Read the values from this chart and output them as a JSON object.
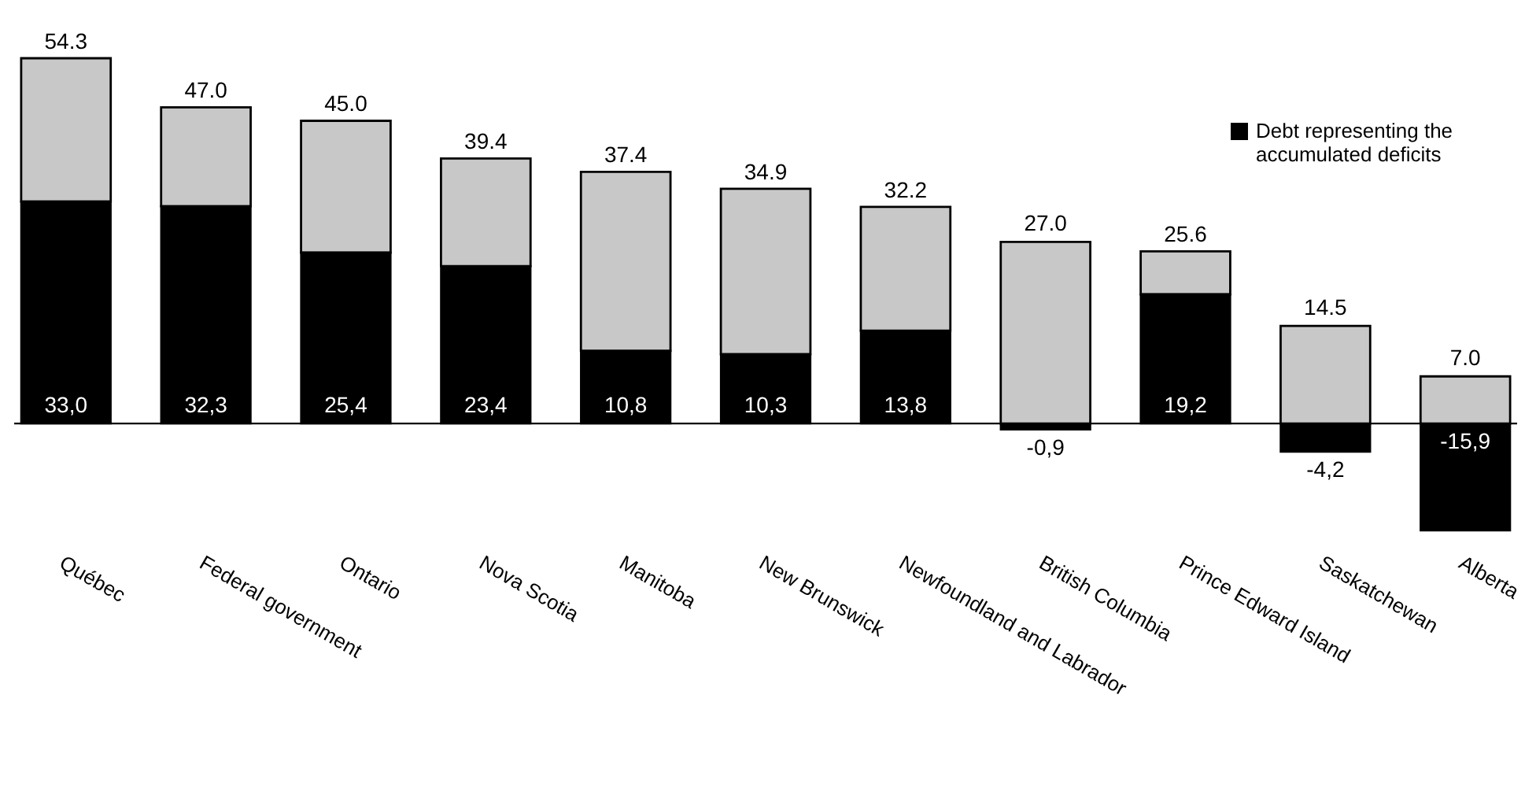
{
  "chart_data": {
    "type": "bar",
    "stacked": true,
    "legend": "top right",
    "tick_labels": "x",
    "categories": [
      "Québec",
      "Federal government",
      "Ontario",
      "Nova Scotia",
      "Manitoba",
      "New Brunswick",
      "Newfoundland and Labrador",
      "British Columbia",
      "Prince Edward Island",
      "Saskatchewan",
      "Alberta"
    ],
    "series": [
      {
        "name": "Debt representing the accumulated deficits",
        "color": "#000000",
        "values": [
          33.0,
          32.3,
          25.4,
          23.4,
          10.8,
          10.3,
          13.8,
          -0.9,
          19.2,
          -4.2,
          -15.9
        ],
        "value_labels": [
          "33,0",
          "32,3",
          "25,4",
          "23,4",
          "10,8",
          "10,3",
          "13,8",
          "-0,9",
          "19,2",
          "-4,2",
          "-15,9"
        ]
      },
      {
        "color": "#c8c8c8",
        "values": [
          21.3,
          14.7,
          19.6,
          16.0,
          26.6,
          24.6,
          18.4,
          27.0,
          6.4,
          14.5,
          7.0
        ],
        "value_labels": [
          null,
          null,
          null,
          null,
          null,
          null,
          null,
          "27.0",
          null,
          "14.5",
          "7.0"
        ]
      }
    ],
    "totals": [
      "54.3",
      "47.0",
      "45.0",
      "39.4",
      "37.4",
      "34.9",
      "32.2",
      null,
      "25.6",
      null,
      null
    ],
    "ref_lines": [
      {
        "axis": "y",
        "value": 0,
        "color": "#000000"
      }
    ]
  }
}
